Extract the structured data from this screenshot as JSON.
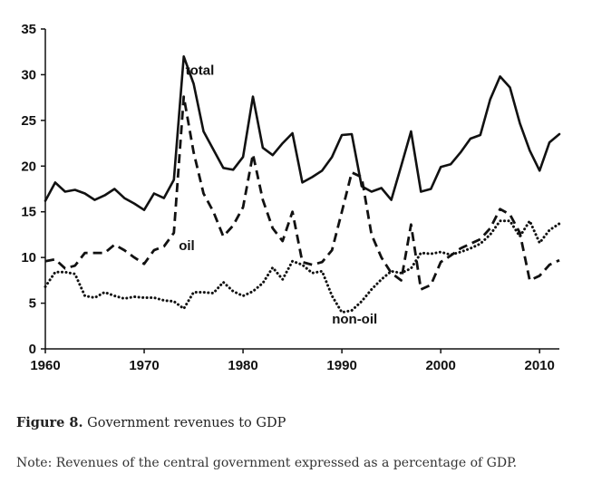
{
  "chart_data": {
    "type": "line",
    "title": "",
    "xlabel": "",
    "ylabel": "",
    "xlim": [
      1960,
      2012
    ],
    "ylim": [
      0,
      35
    ],
    "x_ticks": [
      1960,
      1970,
      1980,
      1990,
      2000,
      2010
    ],
    "y_ticks": [
      0,
      5,
      10,
      15,
      20,
      25,
      30,
      35
    ],
    "grid": false,
    "legend": "none (series labeled inline)",
    "x": [
      1960,
      1961,
      1962,
      1963,
      1964,
      1965,
      1966,
      1967,
      1968,
      1969,
      1970,
      1971,
      1972,
      1973,
      1974,
      1975,
      1976,
      1977,
      1978,
      1979,
      1980,
      1981,
      1982,
      1983,
      1984,
      1985,
      1986,
      1987,
      1988,
      1989,
      1990,
      1991,
      1992,
      1993,
      1994,
      1995,
      1996,
      1997,
      1998,
      1999,
      2000,
      2001,
      2002,
      2003,
      2004,
      2005,
      2006,
      2007,
      2008,
      2009,
      2010,
      2011,
      2012
    ],
    "series": [
      {
        "name": "total",
        "style": "solid",
        "values": [
          16.2,
          18.2,
          17.2,
          17.4,
          17.0,
          16.3,
          16.8,
          17.5,
          16.5,
          15.9,
          15.2,
          17.0,
          16.5,
          18.5,
          32.0,
          29.0,
          23.8,
          21.8,
          19.8,
          19.6,
          21.0,
          27.6,
          22.0,
          21.2,
          22.5,
          23.6,
          18.2,
          18.8,
          19.5,
          21.0,
          23.4,
          23.5,
          17.8,
          17.2,
          17.6,
          16.3,
          20.0,
          23.8,
          17.2,
          17.5,
          19.9,
          20.2,
          21.5,
          23.0,
          23.4,
          27.3,
          29.8,
          28.6,
          24.7,
          21.7,
          19.5,
          22.6,
          23.5
        ]
      },
      {
        "name": "oil",
        "style": "dashed",
        "values": [
          9.6,
          9.8,
          8.8,
          9.1,
          10.5,
          10.5,
          10.5,
          11.4,
          10.8,
          10.0,
          9.3,
          10.8,
          11.2,
          12.7,
          27.6,
          21.5,
          17.0,
          15.0,
          12.3,
          13.5,
          15.5,
          21.3,
          16.3,
          13.2,
          11.8,
          15.0,
          9.5,
          9.2,
          9.5,
          10.8,
          15.0,
          19.3,
          18.8,
          12.5,
          10.0,
          8.3,
          7.5,
          13.6,
          6.5,
          7.0,
          9.5,
          10.2,
          11.0,
          11.5,
          12.0,
          13.2,
          15.3,
          14.7,
          12.7,
          7.5,
          8.0,
          9.2,
          9.7
        ]
      },
      {
        "name": "non-oil",
        "style": "dotted",
        "values": [
          6.8,
          8.4,
          8.4,
          8.2,
          5.8,
          5.6,
          6.2,
          5.8,
          5.5,
          5.7,
          5.6,
          5.6,
          5.3,
          5.2,
          4.4,
          6.2,
          6.2,
          6.1,
          7.3,
          6.3,
          5.8,
          6.3,
          7.2,
          8.9,
          7.6,
          9.6,
          9.2,
          8.3,
          8.5,
          5.8,
          4.0,
          4.2,
          5.2,
          6.5,
          7.6,
          8.5,
          8.3,
          8.8,
          10.5,
          10.4,
          10.6,
          10.3,
          10.6,
          11.0,
          11.5,
          12.5,
          14.0,
          14.0,
          12.3,
          14.0,
          11.6,
          13.0,
          13.7
        ]
      }
    ],
    "annotations": [
      {
        "text": "total",
        "near": {
          "x": 1974,
          "y": 30.0
        }
      },
      {
        "text": "oil",
        "near": {
          "x": 1973.5,
          "y": 10.8
        }
      },
      {
        "text": "non-oil",
        "near": {
          "x": 1989,
          "y": 2.8
        }
      }
    ]
  },
  "caption": {
    "figure_number": "Figure 8.",
    "figure_title": " Government revenues to GDP",
    "note": "Note: Revenues of the central government expressed as a percentage of GDP."
  }
}
